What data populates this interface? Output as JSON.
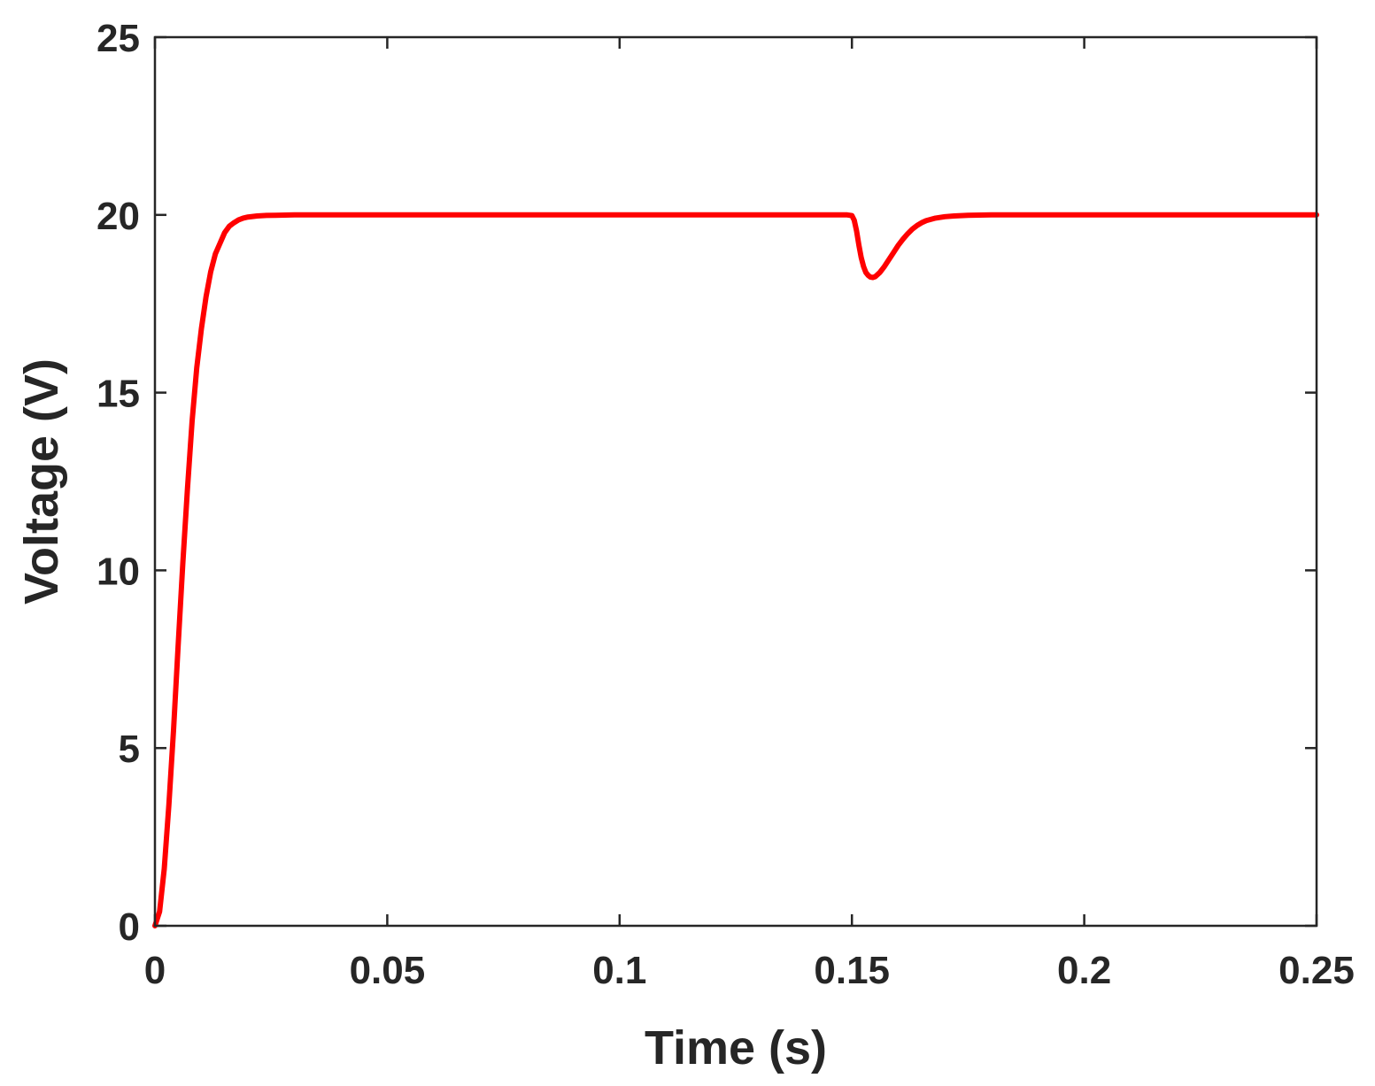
{
  "chart_data": {
    "type": "line",
    "title": "",
    "xlabel": "Time (s)",
    "ylabel": "Voltage (V)",
    "xlim": [
      0,
      0.25
    ],
    "ylim": [
      0,
      25
    ],
    "xticks": [
      0,
      0.05,
      0.1,
      0.15,
      0.2,
      0.25
    ],
    "xtick_labels": [
      "0",
      "0.05",
      "0.1",
      "0.15",
      "0.2",
      "0.25"
    ],
    "yticks": [
      0,
      5,
      10,
      15,
      20,
      25
    ],
    "ytick_labels": [
      "0",
      "5",
      "10",
      "15",
      "20",
      "25"
    ],
    "grid": false,
    "legend": "none",
    "series": [
      {
        "color": "#ff0000",
        "x": [
          0,
          0.001,
          0.002,
          0.003,
          0.004,
          0.005,
          0.006,
          0.007,
          0.008,
          0.009,
          0.01,
          0.011,
          0.012,
          0.013,
          0.014,
          0.015,
          0.016,
          0.017,
          0.018,
          0.019,
          0.02,
          0.022,
          0.024,
          0.026,
          0.028,
          0.03,
          0.035,
          0.05,
          0.1,
          0.149,
          0.15,
          0.1505,
          0.151,
          0.1515,
          0.152,
          0.1525,
          0.153,
          0.1535,
          0.154,
          0.1545,
          0.155,
          0.156,
          0.157,
          0.158,
          0.159,
          0.16,
          0.161,
          0.162,
          0.163,
          0.164,
          0.165,
          0.166,
          0.168,
          0.17,
          0.172,
          0.175,
          0.18,
          0.2,
          0.25
        ],
        "y": [
          0,
          0.4,
          1.6,
          3.4,
          5.5,
          7.9,
          10.2,
          12.3,
          14.2,
          15.7,
          16.8,
          17.7,
          18.4,
          18.9,
          19.2,
          19.5,
          19.68,
          19.78,
          19.86,
          19.91,
          19.94,
          19.97,
          19.985,
          19.99,
          19.995,
          20.0,
          20.0,
          20.0,
          20.0,
          20.0,
          19.98,
          19.85,
          19.55,
          19.15,
          18.8,
          18.55,
          18.38,
          18.3,
          18.25,
          18.24,
          18.26,
          18.38,
          18.55,
          18.75,
          18.95,
          19.15,
          19.32,
          19.47,
          19.6,
          19.7,
          19.78,
          19.84,
          19.91,
          19.95,
          19.97,
          19.99,
          20.0,
          20.0,
          20.0
        ]
      }
    ]
  }
}
